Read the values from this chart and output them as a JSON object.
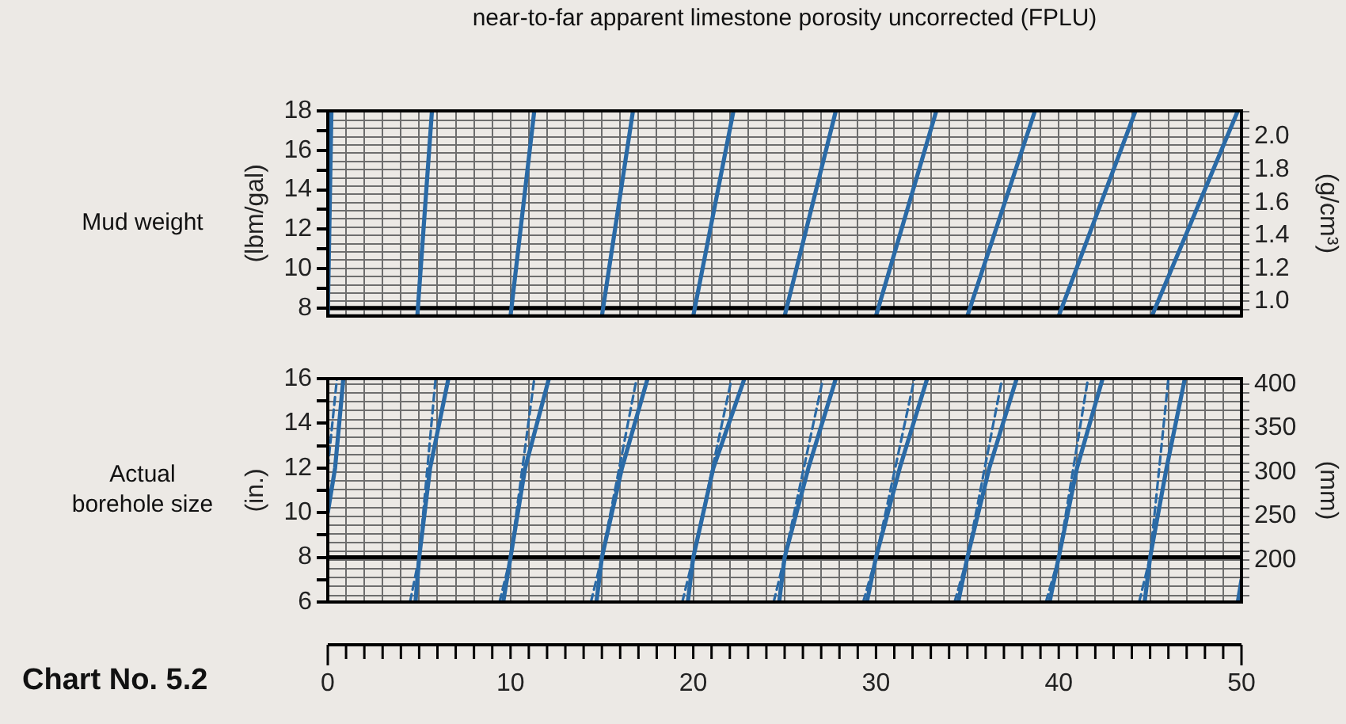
{
  "chart_data": [
    {
      "type": "line",
      "title": "near-to-far apparent limestone porosity uncorrected (FPLU)",
      "ylabel": "(lbm/gal)",
      "y2label": "(g/cm³)",
      "annotations": [
        "Mud weight"
      ],
      "xlim": [
        0,
        50
      ],
      "xticks": [
        0,
        1,
        2,
        3,
        4,
        5,
        6,
        7,
        8,
        9,
        10,
        11,
        12,
        13,
        14,
        15,
        16,
        17,
        18,
        19,
        20,
        21,
        22,
        23,
        24,
        25,
        26,
        27,
        28,
        29,
        30,
        31,
        32,
        33,
        34,
        35,
        36,
        37,
        38,
        39,
        40,
        41,
        42,
        43,
        44,
        45,
        46,
        47,
        48,
        49,
        50
      ],
      "ylim": [
        7.6,
        18
      ],
      "yticks": [
        8,
        {
          "value": 9,
          "label": null
        },
        10,
        {
          "value": 11,
          "label": null
        },
        12,
        {
          "value": 13,
          "label": null
        },
        14,
        {
          "value": 15,
          "label": null
        },
        16,
        {
          "value": 17,
          "label": null
        },
        18
      ],
      "y2lim": [
        0.911,
        2.157
      ],
      "y2ticks": [
        {
          "value": 0.95,
          "label": null
        },
        {
          "value": 1,
          "label": "1.0"
        },
        {
          "value": 1.05,
          "label": null
        },
        {
          "value": 1.1,
          "label": null
        },
        {
          "value": 1.15,
          "label": null
        },
        1.2,
        {
          "value": 1.25,
          "label": null
        },
        {
          "value": 1.3,
          "label": null
        },
        {
          "value": 1.35,
          "label": null
        },
        1.4,
        {
          "value": 1.45,
          "label": null
        },
        {
          "value": 1.5,
          "label": null
        },
        {
          "value": 1.55,
          "label": null
        },
        1.6,
        {
          "value": 1.65,
          "label": null
        },
        {
          "value": 1.7,
          "label": null
        },
        {
          "value": 1.75,
          "label": null
        },
        1.8,
        {
          "value": 1.85,
          "label": null
        },
        {
          "value": 1.9,
          "label": null
        },
        {
          "value": 1.95,
          "label": null
        },
        {
          "value": 2,
          "label": "2.0"
        },
        {
          "value": 2.05,
          "label": null
        },
        {
          "value": 2.1,
          "label": null
        },
        {
          "value": 2.15,
          "label": null
        }
      ],
      "tick_labels": "y",
      "grid": true,
      "line_style": "solid",
      "marker": "none",
      "ref_lines": [
        {
          "axis": "y",
          "value": 8,
          "color": "#000000"
        }
      ],
      "series": [
        {
          "color": "#2a6aa6",
          "x": [
            0,
            0.2
          ],
          "values": [
            7.6,
            18
          ]
        },
        {
          "color": "#2a6aa6",
          "x": [
            4.9,
            5.7
          ],
          "values": [
            7.6,
            18
          ]
        },
        {
          "color": "#2a6aa6",
          "x": [
            10.0,
            11.3
          ],
          "values": [
            7.6,
            18
          ]
        },
        {
          "color": "#2a6aa6",
          "x": [
            15.0,
            16.7
          ],
          "values": [
            7.6,
            18
          ]
        },
        {
          "color": "#2a6aa6",
          "x": [
            20.0,
            22.2
          ],
          "values": [
            7.6,
            18
          ]
        },
        {
          "color": "#2a6aa6",
          "x": [
            25.0,
            27.8
          ],
          "values": [
            7.6,
            18
          ]
        },
        {
          "color": "#2a6aa6",
          "x": [
            30.0,
            33.3
          ],
          "values": [
            7.6,
            18
          ]
        },
        {
          "color": "#2a6aa6",
          "x": [
            35.0,
            38.7
          ],
          "values": [
            7.6,
            18
          ]
        },
        {
          "color": "#2a6aa6",
          "x": [
            40.0,
            44.2
          ],
          "values": [
            7.6,
            18
          ]
        },
        {
          "color": "#2a6aa6",
          "x": [
            45.1,
            49.8
          ],
          "values": [
            7.6,
            18
          ]
        }
      ]
    },
    {
      "type": "line",
      "ylabel": "(in.)",
      "y2label": "(mm)",
      "annotations": [
        "Actual\nborehole size",
        "Chart No. 5.2"
      ],
      "xlim": [
        0,
        50
      ],
      "xticks": [
        0,
        {
          "value": 1,
          "label": null
        },
        {
          "value": 2,
          "label": null
        },
        {
          "value": 3,
          "label": null
        },
        {
          "value": 4,
          "label": null
        },
        {
          "value": 5,
          "label": null
        },
        {
          "value": 6,
          "label": null
        },
        {
          "value": 7,
          "label": null
        },
        {
          "value": 8,
          "label": null
        },
        {
          "value": 9,
          "label": null
        },
        10,
        {
          "value": 11,
          "label": null
        },
        {
          "value": 12,
          "label": null
        },
        {
          "value": 13,
          "label": null
        },
        {
          "value": 14,
          "label": null
        },
        {
          "value": 15,
          "label": null
        },
        {
          "value": 16,
          "label": null
        },
        {
          "value": 17,
          "label": null
        },
        {
          "value": 18,
          "label": null
        },
        {
          "value": 19,
          "label": null
        },
        20,
        {
          "value": 21,
          "label": null
        },
        {
          "value": 22,
          "label": null
        },
        {
          "value": 23,
          "label": null
        },
        {
          "value": 24,
          "label": null
        },
        {
          "value": 25,
          "label": null
        },
        {
          "value": 26,
          "label": null
        },
        {
          "value": 27,
          "label": null
        },
        {
          "value": 28,
          "label": null
        },
        {
          "value": 29,
          "label": null
        },
        30,
        {
          "value": 31,
          "label": null
        },
        {
          "value": 32,
          "label": null
        },
        {
          "value": 33,
          "label": null
        },
        {
          "value": 34,
          "label": null
        },
        {
          "value": 35,
          "label": null
        },
        {
          "value": 36,
          "label": null
        },
        {
          "value": 37,
          "label": null
        },
        {
          "value": 38,
          "label": null
        },
        {
          "value": 39,
          "label": null
        },
        40,
        {
          "value": 41,
          "label": null
        },
        {
          "value": 42,
          "label": null
        },
        {
          "value": 43,
          "label": null
        },
        {
          "value": 44,
          "label": null
        },
        {
          "value": 45,
          "label": null
        },
        {
          "value": 46,
          "label": null
        },
        {
          "value": 47,
          "label": null
        },
        {
          "value": 48,
          "label": null
        },
        {
          "value": 49,
          "label": null
        },
        50
      ],
      "ylim": [
        6,
        16
      ],
      "yticks": [
        6,
        {
          "value": 7,
          "label": null
        },
        8,
        {
          "value": 9,
          "label": null
        },
        10,
        {
          "value": 11,
          "label": null
        },
        12,
        {
          "value": 13,
          "label": null
        },
        14,
        {
          "value": 15,
          "label": null
        },
        16
      ],
      "y2lim": [
        152.4,
        406.4
      ],
      "y2ticks": [
        {
          "value": 160,
          "label": null
        },
        {
          "value": 170,
          "label": null
        },
        {
          "value": 180,
          "label": null
        },
        {
          "value": 190,
          "label": null
        },
        200,
        {
          "value": 210,
          "label": null
        },
        {
          "value": 220,
          "label": null
        },
        {
          "value": 230,
          "label": null
        },
        {
          "value": 240,
          "label": null
        },
        250,
        {
          "value": 260,
          "label": null
        },
        {
          "value": 270,
          "label": null
        },
        {
          "value": 280,
          "label": null
        },
        {
          "value": 290,
          "label": null
        },
        300,
        {
          "value": 310,
          "label": null
        },
        {
          "value": 320,
          "label": null
        },
        {
          "value": 330,
          "label": null
        },
        {
          "value": 340,
          "label": null
        },
        350,
        {
          "value": 360,
          "label": null
        },
        {
          "value": 370,
          "label": null
        },
        {
          "value": 380,
          "label": null
        },
        {
          "value": 390,
          "label": null
        },
        400
      ],
      "grid": true,
      "marker": "none",
      "ref_lines": [
        {
          "axis": "y",
          "value": 8,
          "color": "#000000"
        }
      ],
      "series": [
        {
          "color": "#2a6aa6",
          "line_style": "solid",
          "x": [
            0,
            0.4,
            0.85
          ],
          "values": [
            10,
            12,
            16
          ]
        },
        {
          "color": "#2a6aa6",
          "line_style": "solid",
          "x": [
            4.8,
            5.0,
            5.6,
            6.6
          ],
          "values": [
            6,
            8,
            12,
            16
          ]
        },
        {
          "color": "#2a6aa6",
          "line_style": "solid",
          "x": [
            9.6,
            10.0,
            10.8,
            12.1
          ],
          "values": [
            6,
            8,
            12,
            16
          ]
        },
        {
          "color": "#2a6aa6",
          "line_style": "solid",
          "x": [
            14.7,
            15.0,
            16.1,
            17.5
          ],
          "values": [
            6,
            8,
            12,
            16
          ]
        },
        {
          "color": "#2a6aa6",
          "line_style": "solid",
          "x": [
            19.7,
            20.0,
            21.1,
            22.8
          ],
          "values": [
            6,
            8,
            12,
            16
          ]
        },
        {
          "color": "#2a6aa6",
          "line_style": "solid",
          "x": [
            24.7,
            25.0,
            26.3,
            27.8
          ],
          "values": [
            6,
            8,
            12,
            16
          ]
        },
        {
          "color": "#2a6aa6",
          "line_style": "solid",
          "x": [
            29.5,
            30.0,
            31.3,
            32.8
          ],
          "values": [
            6,
            8,
            12,
            16
          ]
        },
        {
          "color": "#2a6aa6",
          "line_style": "solid",
          "x": [
            34.5,
            35.0,
            36.2,
            37.7
          ],
          "values": [
            6,
            8,
            12,
            16
          ]
        },
        {
          "color": "#2a6aa6",
          "line_style": "solid",
          "x": [
            39.5,
            40.0,
            41.0,
            42.4
          ],
          "values": [
            6,
            8,
            12,
            16
          ]
        },
        {
          "color": "#2a6aa6",
          "line_style": "solid",
          "x": [
            44.7,
            45.0,
            45.9,
            46.9
          ],
          "values": [
            6,
            8,
            12,
            16
          ]
        },
        {
          "color": "#2a6aa6",
          "line_style": "solid",
          "x": [
            49.8,
            50
          ],
          "values": [
            6,
            7
          ]
        },
        {
          "color": "#2a6aa6",
          "line_style": "dashed",
          "x": [
            0,
            0.5
          ],
          "values": [
            12,
            16
          ]
        },
        {
          "color": "#2a6aa6",
          "line_style": "dashed",
          "x": [
            4.5,
            5.0,
            5.9
          ],
          "values": [
            6,
            8,
            16
          ]
        },
        {
          "color": "#2a6aa6",
          "line_style": "dashed",
          "x": [
            9.4,
            10.0,
            11.3
          ],
          "values": [
            6,
            8,
            16
          ]
        },
        {
          "color": "#2a6aa6",
          "line_style": "dashed",
          "x": [
            14.4,
            15.0,
            16.9
          ],
          "values": [
            6,
            8,
            16
          ]
        },
        {
          "color": "#2a6aa6",
          "line_style": "dashed",
          "x": [
            19.4,
            20.0,
            22.1
          ],
          "values": [
            6,
            8,
            16
          ]
        },
        {
          "color": "#2a6aa6",
          "line_style": "dashed",
          "x": [
            24.4,
            25.0,
            27.1
          ],
          "values": [
            6,
            8,
            16
          ]
        },
        {
          "color": "#2a6aa6",
          "line_style": "dashed",
          "x": [
            29.3,
            30.0,
            32.1
          ],
          "values": [
            6,
            8,
            16
          ]
        },
        {
          "color": "#2a6aa6",
          "line_style": "dashed",
          "x": [
            34.3,
            35.0,
            36.9
          ],
          "values": [
            6,
            8,
            16
          ]
        },
        {
          "color": "#2a6aa6",
          "line_style": "dashed",
          "x": [
            39.3,
            40.0,
            41.6
          ],
          "values": [
            6,
            8,
            16
          ]
        },
        {
          "color": "#2a6aa6",
          "line_style": "dashed",
          "x": [
            44.4,
            45.0,
            46.0
          ],
          "values": [
            6,
            8,
            16
          ]
        }
      ]
    }
  ]
}
